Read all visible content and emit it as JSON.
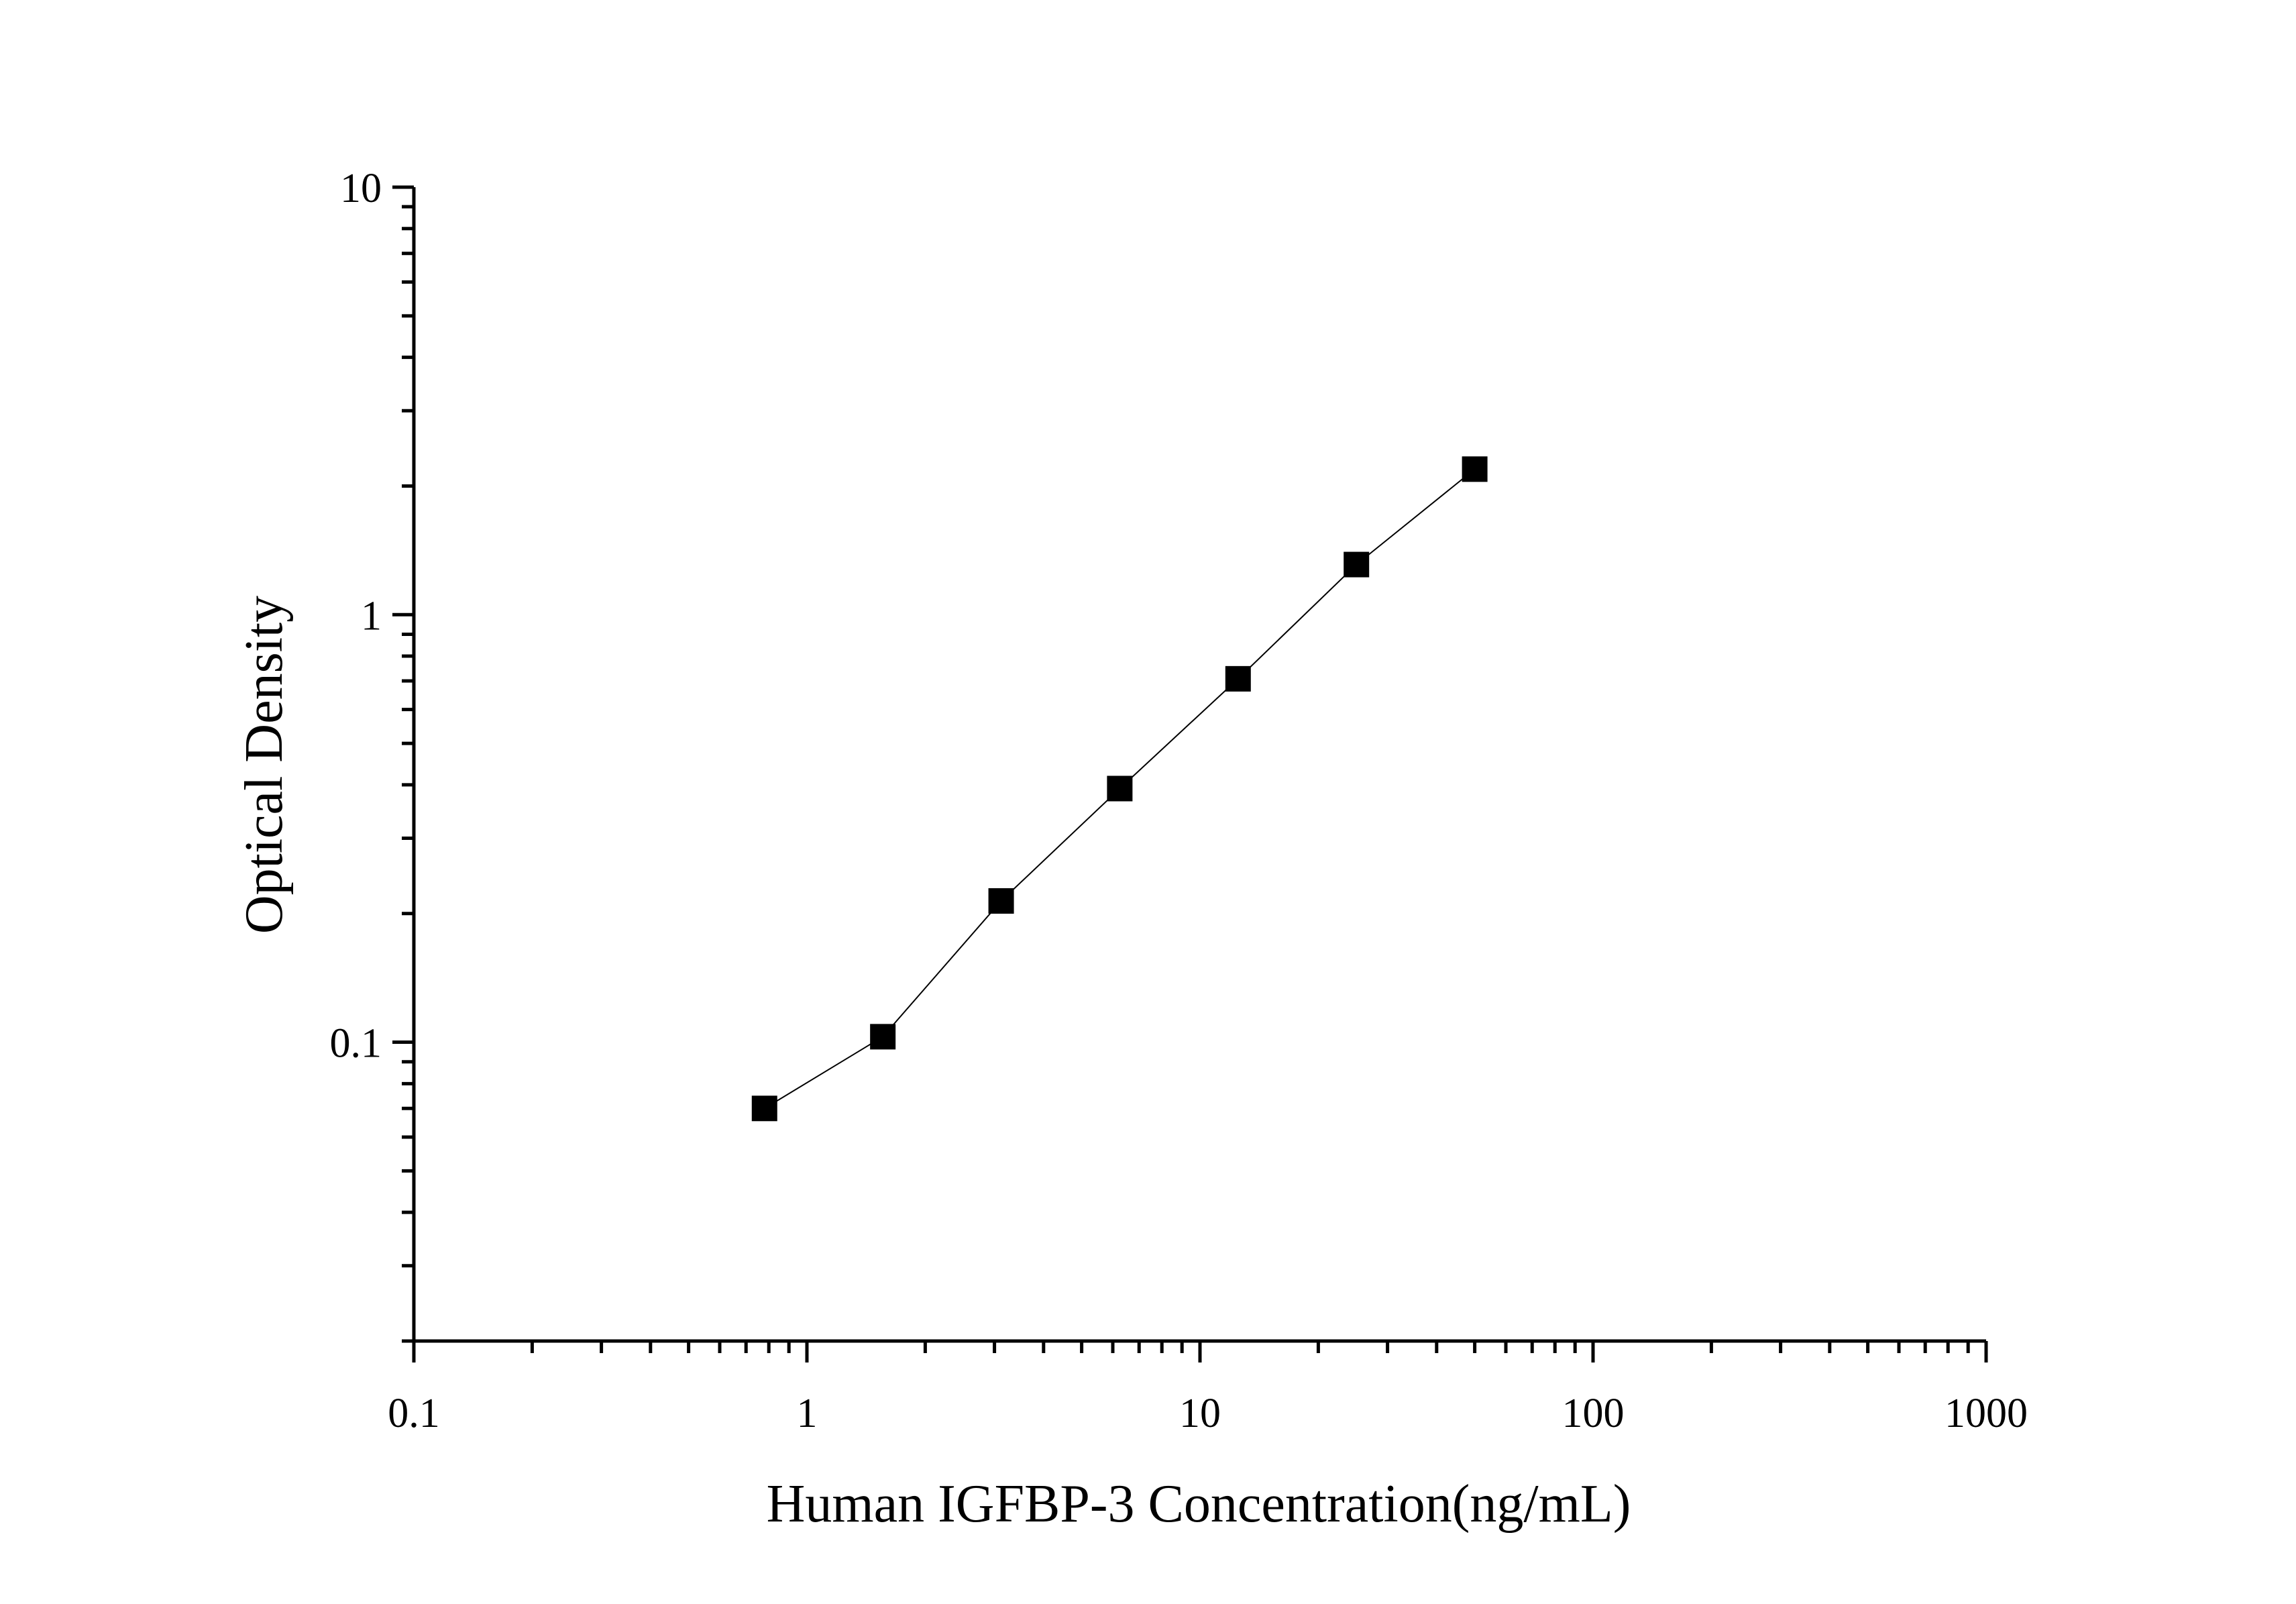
{
  "chart_data": {
    "type": "scatter",
    "xlabel": "Human IGFBP-3 Concentration(ng/mL)",
    "ylabel": "Optical Density",
    "x_scale": "log",
    "y_scale": "log",
    "xlim": [
      0.1,
      1000
    ],
    "ylim": [
      0.02,
      10
    ],
    "x_ticks": [
      0.1,
      1,
      10,
      100,
      1000
    ],
    "x_tick_labels": [
      "0.1",
      "1",
      "10",
      "100",
      "1000"
    ],
    "y_ticks": [
      0.1,
      1,
      10
    ],
    "y_tick_labels": [
      "0.1",
      "1",
      "10"
    ],
    "grid": false,
    "marker": "square",
    "fit_line": true,
    "color": "#000000",
    "series": [
      {
        "x": [
          0.78,
          1.56,
          3.12,
          6.25,
          12.5,
          25,
          50
        ],
        "y": [
          0.07,
          0.103,
          0.214,
          0.392,
          0.708,
          1.31,
          2.19
        ]
      }
    ]
  }
}
